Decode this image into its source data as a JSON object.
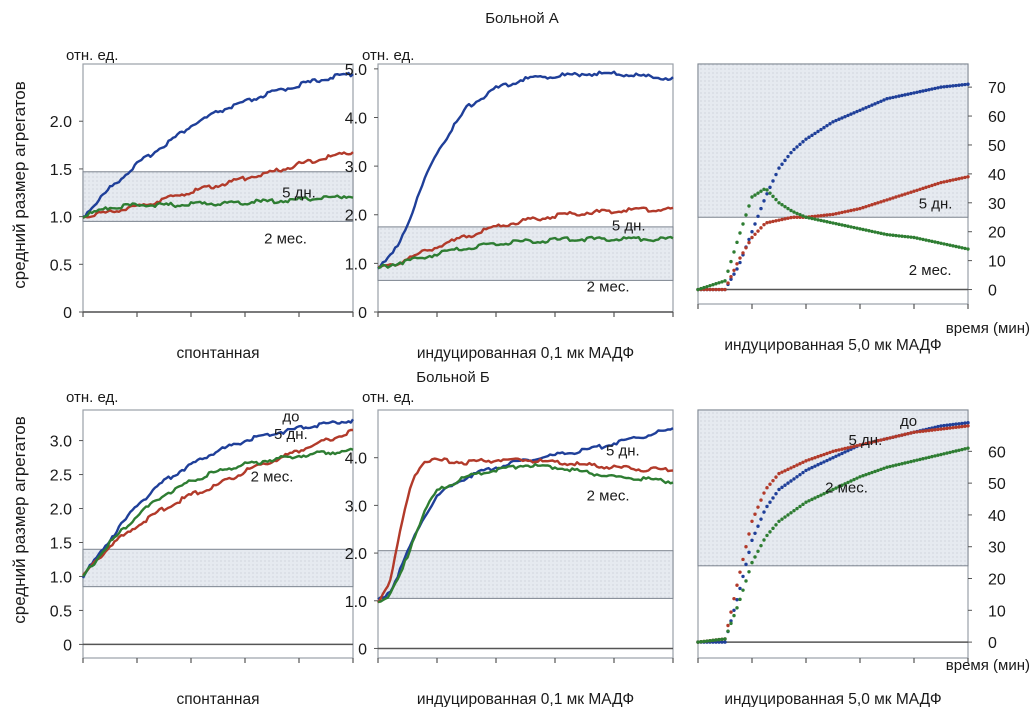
{
  "labels": {
    "row_titles": [
      "Больной А",
      "Больной Б"
    ],
    "ylabel": "средний размер агрегатов",
    "unit": "отн. ед.",
    "time_label": "время (мин)"
  },
  "colors": {
    "до": "#1f3f99",
    "5 дн.": "#b23a2a",
    "2 мес.": "#2e7d32",
    "band_fill": "#e4e8ee",
    "axis": "#555555",
    "frame": "#9aa0a8"
  },
  "chart_data": [
    {
      "type": "line",
      "xlabel": "спонтанная",
      "ytick_labels": [
        "0",
        "0.5",
        "1.0",
        "1.5",
        "2.0"
      ],
      "ylim": [
        0,
        2.6
      ],
      "x": [
        0,
        0.1,
        0.2,
        0.3,
        0.4,
        0.5,
        0.6,
        0.7,
        0.8,
        0.9,
        1.0
      ],
      "band": [
        0.95,
        1.47
      ],
      "series": [
        {
          "key": "до",
          "values": [
            1.0,
            1.3,
            1.55,
            1.75,
            1.95,
            2.1,
            2.2,
            2.3,
            2.38,
            2.45,
            2.5
          ]
        },
        {
          "key": "5 дн.",
          "values": [
            1.0,
            1.05,
            1.1,
            1.18,
            1.26,
            1.33,
            1.4,
            1.47,
            1.55,
            1.62,
            1.68
          ]
        },
        {
          "key": "2 мес.",
          "values": [
            1.0,
            1.1,
            1.12,
            1.12,
            1.13,
            1.14,
            1.15,
            1.16,
            1.18,
            1.2,
            1.22
          ]
        }
      ],
      "annotations": [
        {
          "text": "5 дн.",
          "x": 0.8,
          "y": 1.2
        },
        {
          "text": "2 мес.",
          "x": 0.75,
          "y": 0.72
        }
      ]
    },
    {
      "type": "line",
      "xlabel": "индуцированная 0,1 мк МАДФ",
      "ytick_labels": [
        "0",
        "1.0",
        "2.0",
        "3.0",
        "4.0",
        "5.0"
      ],
      "ylim": [
        0,
        5.1
      ],
      "x": [
        0,
        0.03,
        0.06,
        0.1,
        0.15,
        0.2,
        0.3,
        0.4,
        0.5,
        0.6,
        0.7,
        0.8,
        0.9,
        1.0
      ],
      "band": [
        0.65,
        1.75
      ],
      "series": [
        {
          "key": "до",
          "values": [
            0.9,
            1.05,
            1.3,
            1.8,
            2.6,
            3.3,
            4.2,
            4.6,
            4.8,
            4.85,
            4.9,
            4.9,
            4.85,
            4.8
          ]
        },
        {
          "key": "5 дн.",
          "values": [
            0.9,
            0.95,
            1.0,
            1.1,
            1.22,
            1.35,
            1.55,
            1.75,
            1.88,
            1.98,
            2.04,
            2.08,
            2.1,
            2.12
          ]
        },
        {
          "key": "2 мес.",
          "values": [
            0.9,
            0.95,
            1.0,
            1.05,
            1.12,
            1.2,
            1.32,
            1.4,
            1.45,
            1.48,
            1.5,
            1.5,
            1.5,
            1.5
          ]
        }
      ],
      "annotations": [
        {
          "text": "5 дн.",
          "x": 0.85,
          "y": 1.68
        },
        {
          "text": "2 мес.",
          "x": 0.78,
          "y": 0.42
        }
      ]
    },
    {
      "type": "scatter",
      "xlabel": "индуцированная 5,0 мк МАДФ",
      "ytick_labels": [
        "0",
        "10",
        "20",
        "30",
        "40",
        "50",
        "60",
        "70"
      ],
      "ylim": [
        -5,
        78
      ],
      "x": [
        0,
        0.1,
        0.15,
        0.2,
        0.25,
        0.3,
        0.35,
        0.4,
        0.5,
        0.6,
        0.7,
        0.8,
        0.9,
        1.0
      ],
      "band": [
        25,
        78
      ],
      "series": [
        {
          "key": "до",
          "values": [
            0,
            0,
            8,
            20,
            32,
            42,
            48,
            52,
            58,
            62,
            66,
            68,
            70,
            71
          ]
        },
        {
          "key": "5 дн.",
          "values": [
            0,
            0,
            10,
            18,
            23,
            24,
            25,
            25,
            26,
            28,
            31,
            34,
            37,
            39
          ]
        },
        {
          "key": "2 мес.",
          "values": [
            0,
            3,
            18,
            32,
            35,
            30,
            27,
            25,
            23,
            21,
            19,
            18,
            16,
            14
          ]
        }
      ],
      "annotations": [
        {
          "text": "5 дн.",
          "x": 0.88,
          "y": 28
        },
        {
          "text": "2 мес.",
          "x": 0.86,
          "y": 5
        }
      ]
    },
    {
      "type": "line",
      "xlabel": "спонтанная",
      "ytick_labels": [
        "0",
        "0.5",
        "1.0",
        "1.5",
        "2.0",
        "2.5",
        "3.0"
      ],
      "ylim": [
        -0.2,
        3.45
      ],
      "x": [
        0,
        0.1,
        0.2,
        0.3,
        0.4,
        0.5,
        0.6,
        0.7,
        0.8,
        0.9,
        1.0
      ],
      "band": [
        0.85,
        1.4
      ],
      "series": [
        {
          "key": "до",
          "values": [
            1.0,
            1.55,
            2.05,
            2.4,
            2.65,
            2.85,
            3.0,
            3.1,
            3.18,
            3.25,
            3.3
          ]
        },
        {
          "key": "5 дн.",
          "values": [
            1.0,
            1.45,
            1.75,
            2.0,
            2.2,
            2.35,
            2.55,
            2.7,
            2.85,
            3.0,
            3.15
          ]
        },
        {
          "key": "2 мес.",
          "values": [
            1.0,
            1.5,
            1.9,
            2.2,
            2.4,
            2.55,
            2.65,
            2.72,
            2.78,
            2.82,
            2.85
          ]
        }
      ],
      "annotations": [
        {
          "text": "до",
          "x": 0.77,
          "y": 3.28
        },
        {
          "text": "5 дн.",
          "x": 0.77,
          "y": 3.02
        },
        {
          "text": "2 мес.",
          "x": 0.7,
          "y": 2.4
        }
      ]
    },
    {
      "type": "line",
      "xlabel": "индуцированная 0,1 мк МАДФ",
      "ytick_labels": [
        "0",
        "1.0",
        "2.0",
        "3.0",
        "4.0"
      ],
      "ylim": [
        -0.2,
        5.0
      ],
      "x": [
        0,
        0.04,
        0.08,
        0.12,
        0.16,
        0.2,
        0.3,
        0.4,
        0.5,
        0.6,
        0.7,
        0.8,
        0.9,
        1.0
      ],
      "band": [
        1.05,
        2.05
      ],
      "series": [
        {
          "key": "до",
          "values": [
            1.0,
            1.2,
            1.7,
            2.3,
            2.8,
            3.2,
            3.6,
            3.8,
            3.95,
            4.05,
            4.15,
            4.3,
            4.45,
            4.6
          ]
        },
        {
          "key": "5 дн.",
          "values": [
            1.0,
            1.4,
            2.6,
            3.6,
            3.95,
            3.95,
            3.9,
            3.95,
            3.95,
            3.9,
            3.85,
            3.8,
            3.75,
            3.75
          ]
        },
        {
          "key": "2 мес.",
          "values": [
            1.0,
            1.1,
            1.6,
            2.3,
            2.9,
            3.3,
            3.6,
            3.75,
            3.85,
            3.8,
            3.7,
            3.6,
            3.55,
            3.5
          ]
        }
      ],
      "annotations": [
        {
          "text": "5 дн.",
          "x": 0.83,
          "y": 4.05
        },
        {
          "text": "2 мес.",
          "x": 0.78,
          "y": 3.1
        }
      ]
    },
    {
      "type": "scatter",
      "xlabel": "индуцированная 5,0 мк МАДФ",
      "ytick_labels": [
        "0",
        "10",
        "20",
        "30",
        "40",
        "50",
        "60"
      ],
      "ylim": [
        -5,
        73
      ],
      "x": [
        0,
        0.1,
        0.15,
        0.2,
        0.25,
        0.3,
        0.4,
        0.5,
        0.6,
        0.7,
        0.8,
        0.9,
        1.0
      ],
      "band": [
        24,
        73
      ],
      "series": [
        {
          "key": "до",
          "values": [
            0,
            0,
            15,
            32,
            42,
            48,
            54,
            58,
            62,
            64,
            66,
            68,
            69
          ]
        },
        {
          "key": "5 дн.",
          "values": [
            0,
            1,
            20,
            38,
            48,
            53,
            57,
            60,
            62,
            64,
            66,
            67,
            68
          ]
        },
        {
          "key": "2 мес.",
          "values": [
            0,
            1,
            12,
            25,
            33,
            38,
            44,
            48,
            52,
            55,
            57,
            59,
            61
          ]
        }
      ],
      "annotations": [
        {
          "text": "до",
          "x": 0.78,
          "y": 68
        },
        {
          "text": "5 дн.",
          "x": 0.62,
          "y": 62
        },
        {
          "text": "2 мес.",
          "x": 0.55,
          "y": 47
        }
      ]
    }
  ]
}
